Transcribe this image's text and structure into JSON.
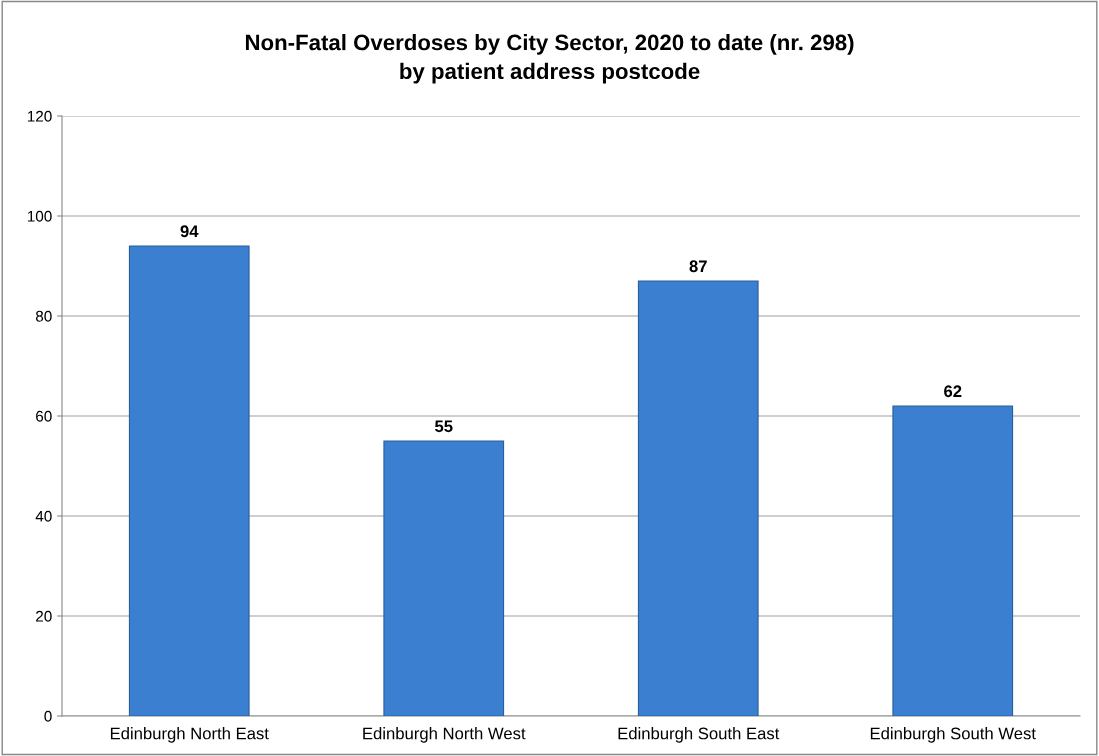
{
  "chart_data": {
    "type": "bar",
    "title": "Non-Fatal Overdoses by City Sector, 2020 to date (nr. 298)\nby patient address postcode",
    "categories": [
      "Edinburgh North East",
      "Edinburgh North West",
      "Edinburgh South East",
      "Edinburgh South West"
    ],
    "values": [
      94,
      55,
      87,
      62
    ],
    "color": "#3a7fd0",
    "ylim": [
      0,
      120
    ],
    "yticks": [
      0,
      20,
      40,
      60,
      80,
      100,
      120
    ],
    "grid": "y",
    "data_labels": true
  }
}
